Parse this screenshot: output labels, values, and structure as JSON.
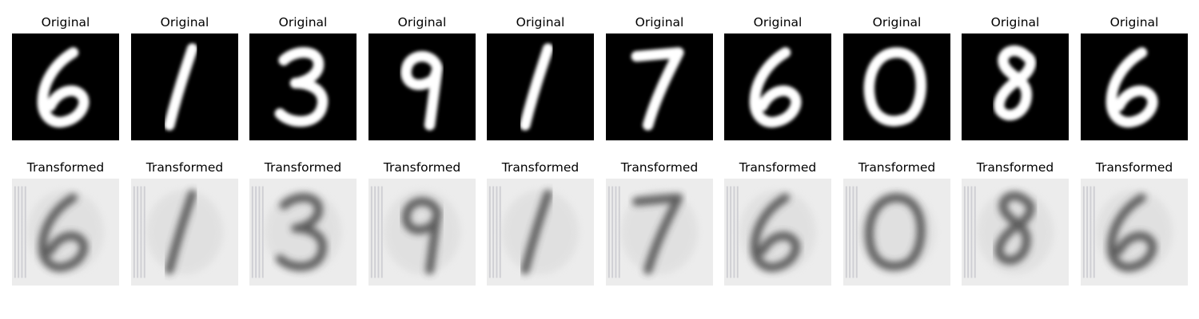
{
  "rows": {
    "original": {
      "panel_title": "Original",
      "digits": [
        "6",
        "1",
        "3",
        "9",
        "1",
        "7",
        "6",
        "0",
        "8",
        "6"
      ],
      "background": "#000000",
      "ink": "#ffffff"
    },
    "transformed": {
      "panel_title": "Transformed",
      "background": "#ececec",
      "ink": "#3a3a3a"
    }
  }
}
